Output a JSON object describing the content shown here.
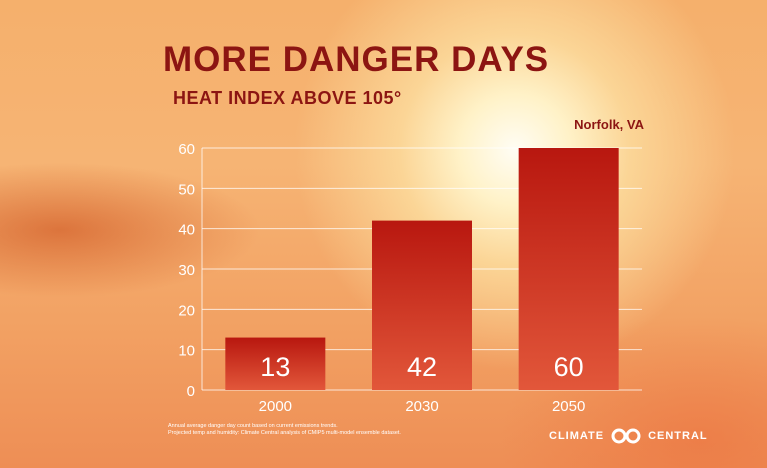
{
  "header": {
    "title": "MORE DANGER DAYS",
    "subtitle": "HEAT INDEX ABOVE 105°",
    "location": "Norfolk, VA"
  },
  "footnote": {
    "line1": "Annual average danger day count based on current emissions trends.",
    "line2": "Projected temp and humidity: Climate Central analysis of CMIP5 multi-model ensemble dataset."
  },
  "brand": {
    "left": "CLIMATE",
    "right": "CENTRAL",
    "logo_icon": "climate-central-logo-icon"
  },
  "colors": {
    "bar_top": "#b8170f",
    "bar_bottom": "#e2573a",
    "title": "#8c1512",
    "gridline": "#ffffff"
  },
  "chart_data": {
    "type": "bar",
    "title": "MORE DANGER DAYS",
    "subtitle": "HEAT INDEX ABOVE 105°",
    "categories": [
      "2000",
      "2030",
      "2050"
    ],
    "values": [
      13,
      42,
      60
    ],
    "data_labels": [
      "13",
      "42",
      "60"
    ],
    "y_ticks": [
      "0",
      "10",
      "20",
      "30",
      "40",
      "50",
      "60"
    ],
    "ylim": [
      0,
      60
    ],
    "xlabel": "",
    "ylabel": "",
    "grid": true,
    "legend": "none"
  }
}
